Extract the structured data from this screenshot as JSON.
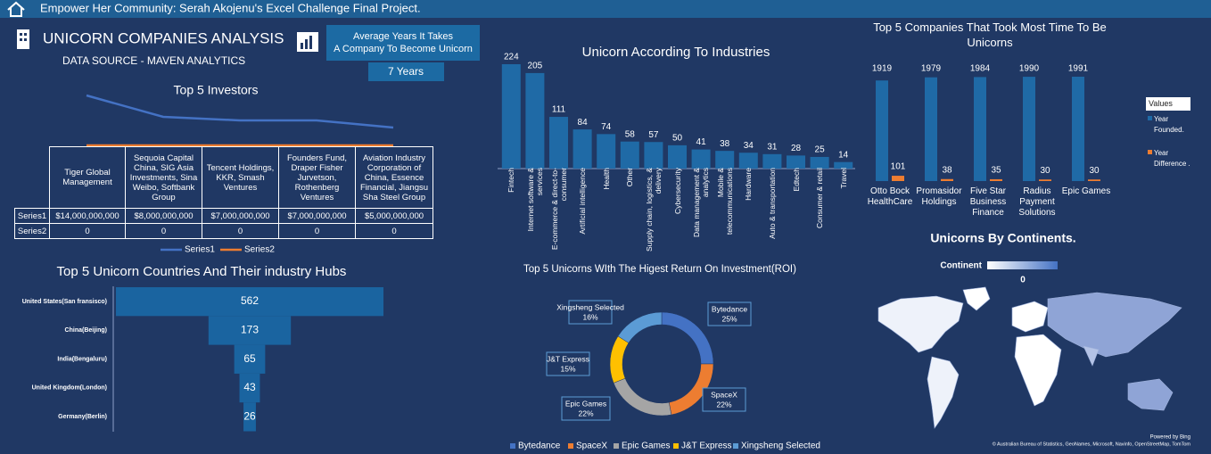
{
  "header": {
    "title": "Empower Her Community: Serah Akojenu's Excel Challenge Final Project."
  },
  "dashboard": {
    "title": "UNICORN COMPANIES ANALYSIS",
    "subtitle": "DATA SOURCE - MAVEN ANALYTICS"
  },
  "kpi": {
    "label": [
      "Average Years It Takes",
      "A Company To Become Unicorn"
    ],
    "value": "7 Years"
  },
  "chart_data": [
    {
      "type": "line",
      "title": "Top 5 Investors",
      "categories": [
        "Tiger Global Management",
        "Sequoia Capital China, SIG Asia Investments, Sina Weibo, Softbank Group",
        "Tencent Holdings, KKR, Smash Ventures",
        "Founders Fund, Draper Fisher Jurvetson, Rothenberg Ventures",
        "Aviation Industry Corporation of China, Essence Financial, Jiangsu Sha Steel Group"
      ],
      "series": [
        {
          "name": "Series1",
          "color": "#4472c4",
          "values": [
            14000000000,
            8000000000,
            7000000000,
            7000000000,
            5000000000
          ],
          "value_labels": [
            "$14,000,000,000",
            "$8,000,000,000",
            "$7,000,000,000",
            "$7,000,000,000",
            "$5,000,000,000"
          ]
        },
        {
          "name": "Series2",
          "color": "#ed7d31",
          "values": [
            0,
            0,
            0,
            0,
            0
          ]
        }
      ]
    },
    {
      "type": "funnel",
      "title": "Top 5 Unicorn Countries And Their industry Hubs",
      "color": "#1a64a0",
      "categories": [
        "United States(San fransisco)",
        "China(Beijing)",
        "India(Bengaluru)",
        "United Kingdom(London)",
        "Germany(Berlin)"
      ],
      "values": [
        562,
        173,
        65,
        43,
        26
      ]
    },
    {
      "type": "bar",
      "title": "Unicorn According To Industries",
      "color": "#1f6aa6",
      "categories": [
        "Fintech",
        "Internet software & services",
        "E-commerce & direct-to-consumer",
        "Artificial intelligence",
        "Health",
        "Other",
        "Supply chain, logistics, & delivery",
        "Cybersecurity",
        "Data management & analytics",
        "Mobile & telecommunications",
        "Hardware",
        "Auto & transportation",
        "Edtech",
        "Consumer & retail",
        "Travel"
      ],
      "values": [
        224,
        205,
        111,
        84,
        74,
        58,
        57,
        50,
        41,
        38,
        34,
        31,
        28,
        25,
        14
      ]
    },
    {
      "type": "grouped-bar",
      "title": "Top 5 Companies That Took Most Time To Be Unicorns",
      "legend_title": "Values",
      "categories": [
        "Otto Bock HealthCare",
        "Promasidor Holdings",
        "Five Star Business Finance",
        "Radius Payment Solutions",
        "Epic Games"
      ],
      "series": [
        {
          "name": "Year Founded.",
          "color": "#1f6aa6",
          "values": [
            1919,
            1979,
            1984,
            1990,
            1991
          ]
        },
        {
          "name": "Year Difference .",
          "color": "#ed7d31",
          "values": [
            101,
            38,
            35,
            30,
            30
          ]
        }
      ]
    },
    {
      "type": "donut",
      "title": "Top 5 Unicorns WIth The Higest Return On Investment(ROI)",
      "categories": [
        "Bytedance",
        "SpaceX",
        "Epic Games",
        "J&T Express",
        "Xingsheng Selected"
      ],
      "values": [
        25,
        22,
        22,
        15,
        16
      ],
      "value_labels": [
        "25%",
        "22%",
        "22%",
        "15%",
        "16%"
      ],
      "colors": [
        "#4472c4",
        "#ed7d31",
        "#a5a5a5",
        "#ffc000",
        "#5b9bd5"
      ]
    },
    {
      "type": "map",
      "title": "Unicorns By Continents.",
      "legend_title": "Continent",
      "legend_ticks": [
        0
      ],
      "credit": "Powered by Bing",
      "attribution": "© Australian Bureau of Statistics, GeoNames, Microsoft, Navinfo, OpenStreetMap, TomTom"
    }
  ]
}
